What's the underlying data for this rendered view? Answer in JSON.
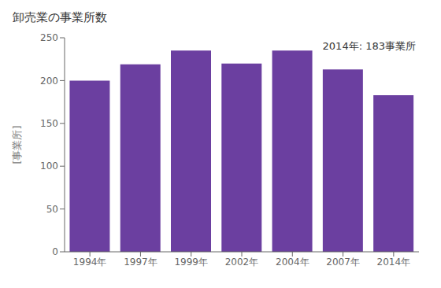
{
  "chart_data": {
    "type": "bar",
    "title": "卸売業の事業所数",
    "ylabel": "[事業所]",
    "annotation": "2014年: 183事業所",
    "categories": [
      "1994年",
      "1997年",
      "1999年",
      "2002年",
      "2004年",
      "2007年",
      "2014年"
    ],
    "values": [
      200,
      219,
      235,
      220,
      235,
      213,
      183
    ],
    "color": "#6b3fa0",
    "ylim": [
      0,
      250
    ],
    "yticks": [
      0,
      50,
      100,
      150,
      200,
      250
    ],
    "grid": false
  }
}
